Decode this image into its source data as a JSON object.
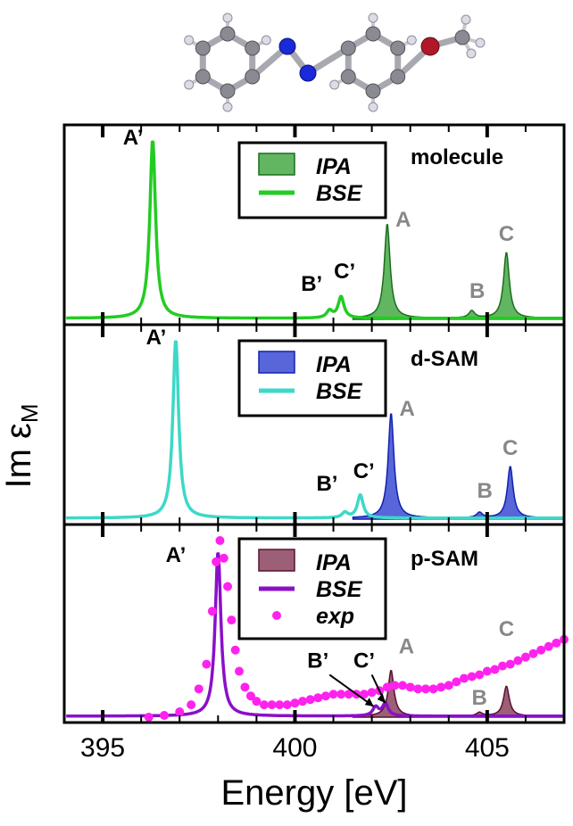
{
  "chart_data": {
    "type": "line",
    "xlabel": "Energy [eV]",
    "ylabel": "Im ε",
    "ylabel_sub": "M",
    "xlim": [
      394.0,
      407.0
    ],
    "x_ticks": [
      "395",
      "400",
      "405"
    ],
    "panels": [
      {
        "title": "molecule",
        "colors": {
          "bse": "#22cc22",
          "ipa_fill": "#2e9e2e",
          "ipa_line": "#1a6e1a"
        },
        "legend": [
          "IPA",
          "BSE"
        ],
        "bse_peaks": [
          {
            "label": "A’",
            "x": 396.3,
            "y": 1.0
          },
          {
            "label": "B’",
            "x": 400.9,
            "y": 0.04
          },
          {
            "label": "C’",
            "x": 401.2,
            "y": 0.12
          }
        ],
        "ipa_peaks": [
          {
            "label": "A",
            "x": 402.4,
            "y": 0.53
          },
          {
            "label": "B",
            "x": 404.6,
            "y": 0.04
          },
          {
            "label": "C",
            "x": 405.5,
            "y": 0.37
          }
        ]
      },
      {
        "title": "d-SAM",
        "colors": {
          "bse": "#3dd8c8",
          "ipa_fill": "#2233cc",
          "ipa_line": "#1020b0"
        },
        "legend": [
          "IPA",
          "BSE"
        ],
        "bse_peaks": [
          {
            "label": "A’",
            "x": 396.9,
            "y": 1.0
          },
          {
            "label": "B’",
            "x": 401.3,
            "y": 0.03
          },
          {
            "label": "C’",
            "x": 401.7,
            "y": 0.13
          }
        ],
        "ipa_peaks": [
          {
            "label": "A",
            "x": 402.5,
            "y": 0.59
          },
          {
            "label": "B",
            "x": 404.8,
            "y": 0.03
          },
          {
            "label": "C",
            "x": 405.6,
            "y": 0.29
          }
        ]
      },
      {
        "title": "p-SAM",
        "colors": {
          "bse": "#8a10c8",
          "ipa_fill": "#7a2a4a",
          "ipa_line": "#5a1030",
          "exp": "#ff22ee"
        },
        "legend": [
          "IPA",
          "BSE",
          "exp"
        ],
        "bse_peaks": [
          {
            "label": "A’",
            "x": 398.0,
            "y": 0.93
          },
          {
            "label": "B’",
            "x": 402.1,
            "y": 0.05
          },
          {
            "label": "C’",
            "x": 402.35,
            "y": 0.07
          }
        ],
        "ipa_peaks": [
          {
            "label": "A",
            "x": 402.5,
            "y": 0.26
          },
          {
            "label": "B",
            "x": 404.8,
            "y": 0.02
          },
          {
            "label": "C",
            "x": 405.5,
            "y": 0.17
          }
        ],
        "exp_points": [
          [
            396.2,
            0.0
          ],
          [
            396.6,
            0.01
          ],
          [
            397.0,
            0.03
          ],
          [
            397.3,
            0.07
          ],
          [
            397.5,
            0.16
          ],
          [
            397.7,
            0.3
          ],
          [
            397.85,
            0.6
          ],
          [
            397.95,
            0.88
          ],
          [
            398.05,
            1.0
          ],
          [
            398.15,
            0.9
          ],
          [
            398.25,
            0.74
          ],
          [
            398.35,
            0.55
          ],
          [
            398.45,
            0.38
          ],
          [
            398.55,
            0.26
          ],
          [
            398.7,
            0.17
          ],
          [
            398.85,
            0.12
          ],
          [
            399.0,
            0.09
          ],
          [
            399.2,
            0.07
          ],
          [
            399.4,
            0.07
          ],
          [
            399.6,
            0.07
          ],
          [
            399.8,
            0.07
          ],
          [
            400.0,
            0.08
          ],
          [
            400.2,
            0.09
          ],
          [
            400.4,
            0.1
          ],
          [
            400.6,
            0.11
          ],
          [
            400.8,
            0.12
          ],
          [
            401.0,
            0.13
          ],
          [
            401.2,
            0.13
          ],
          [
            401.4,
            0.13
          ],
          [
            401.6,
            0.13
          ],
          [
            401.8,
            0.13
          ],
          [
            402.0,
            0.14
          ],
          [
            402.2,
            0.15
          ],
          [
            402.4,
            0.17
          ],
          [
            402.6,
            0.18
          ],
          [
            402.8,
            0.18
          ],
          [
            403.0,
            0.17
          ],
          [
            403.2,
            0.16
          ],
          [
            403.4,
            0.16
          ],
          [
            403.6,
            0.16
          ],
          [
            403.8,
            0.17
          ],
          [
            404.0,
            0.18
          ],
          [
            404.2,
            0.2
          ],
          [
            404.4,
            0.22
          ],
          [
            404.6,
            0.23
          ],
          [
            404.8,
            0.24
          ],
          [
            405.0,
            0.26
          ],
          [
            405.2,
            0.27
          ],
          [
            405.4,
            0.29
          ],
          [
            405.6,
            0.3
          ],
          [
            405.8,
            0.32
          ],
          [
            406.0,
            0.34
          ],
          [
            406.2,
            0.36
          ],
          [
            406.4,
            0.38
          ],
          [
            406.6,
            0.4
          ],
          [
            406.8,
            0.42
          ],
          [
            407.0,
            0.44
          ]
        ]
      }
    ]
  }
}
